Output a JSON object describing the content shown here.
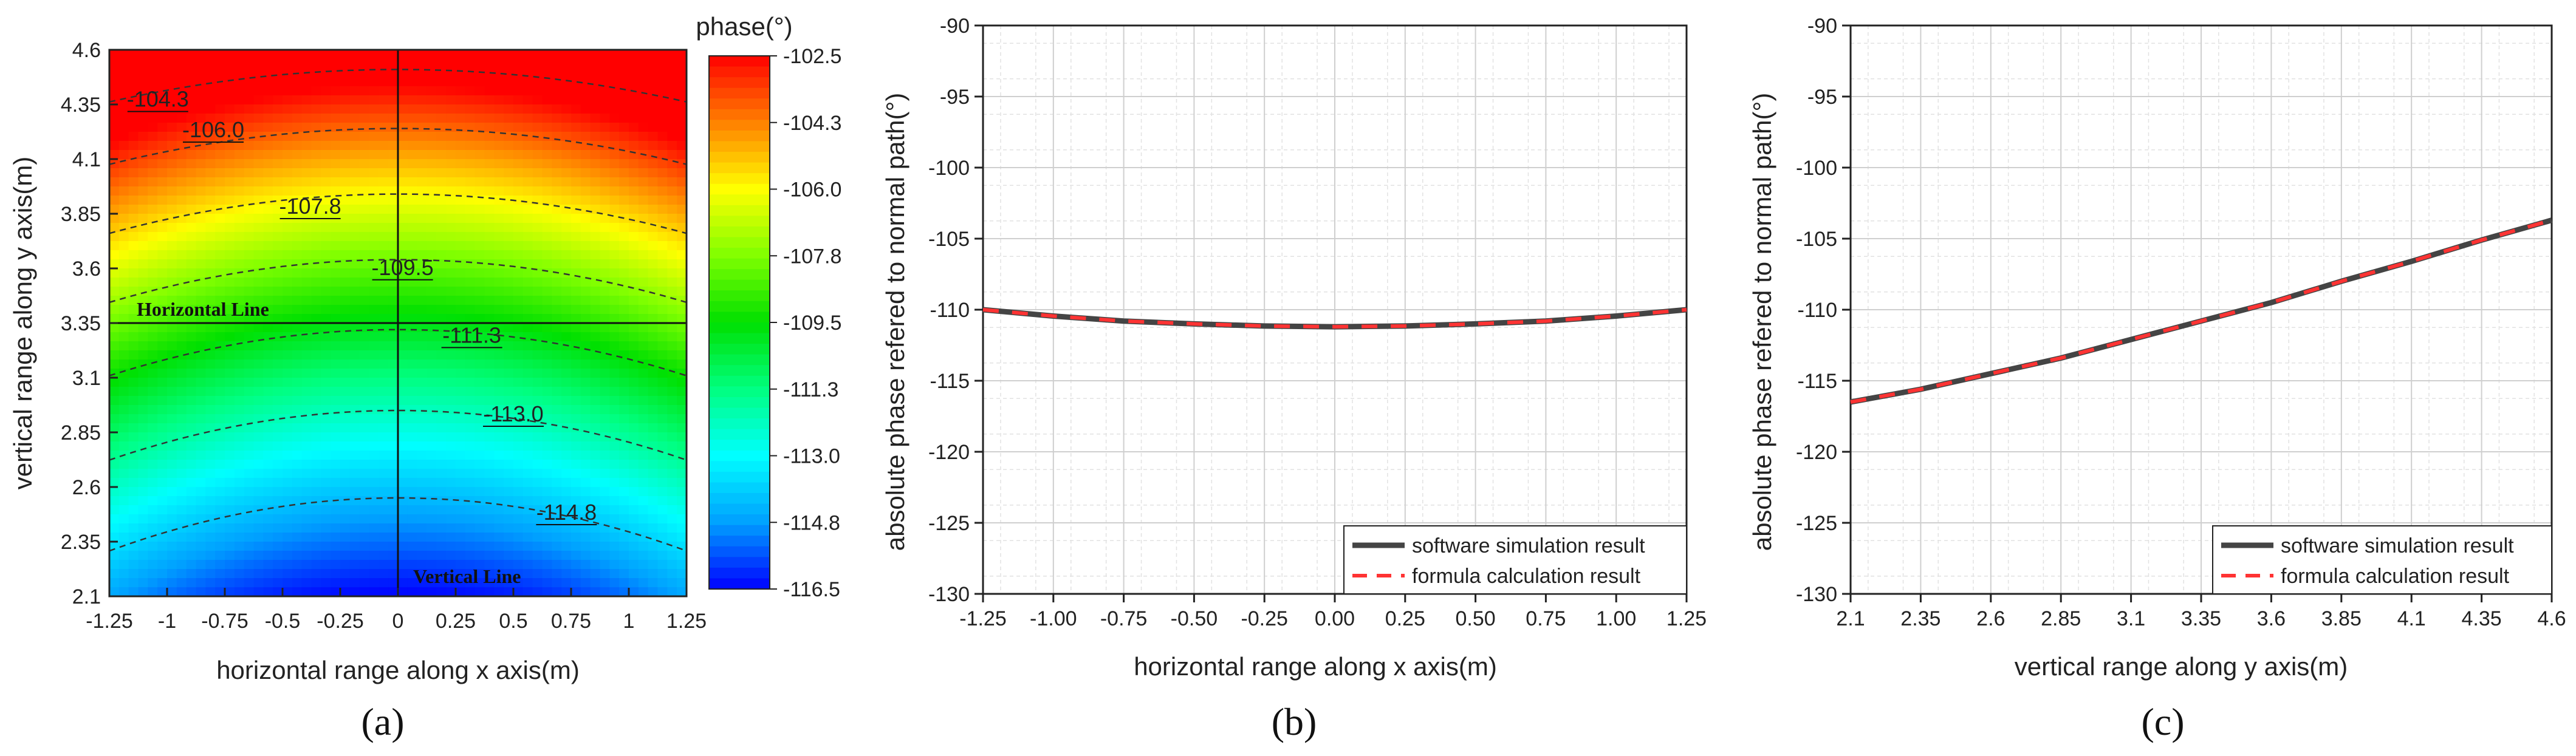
{
  "panels": {
    "a": {
      "caption": "(a)"
    },
    "b": {
      "caption": "(b)"
    },
    "c": {
      "caption": "(c)"
    }
  },
  "chart_data": [
    {
      "panel": "a",
      "type": "heatmap",
      "title": "",
      "xlabel": "horizontal range along x axis(m)",
      "ylabel": "vertical range along y axis(m)",
      "xlim": [
        -1.25,
        1.25
      ],
      "ylim": [
        2.1,
        4.6
      ],
      "xticks": [
        "-1.25",
        "-1",
        "-0.75",
        "-0.5",
        "-0.25",
        "0",
        "0.25",
        "0.5",
        "0.75",
        "1",
        "1.25"
      ],
      "yticks": [
        "2.1",
        "2.35",
        "2.6",
        "2.85",
        "3.1",
        "3.35",
        "3.6",
        "3.85",
        "4.1",
        "4.35",
        "4.6"
      ],
      "colorbar": {
        "label": "phase(°)",
        "ticks": [
          "-102.5",
          "-104.3",
          "-106.0",
          "-107.8",
          "-109.5",
          "-111.3",
          "-113.0",
          "-114.8",
          "-116.5"
        ],
        "range": [
          -116.5,
          -102.5
        ],
        "colors": [
          "#0000ff",
          "#00a0ff",
          "#00ffff",
          "#00ff80",
          "#00e000",
          "#80ff00",
          "#ffff00",
          "#ff8000",
          "#ff0000"
        ]
      },
      "contours": [
        {
          "label": "-104.3",
          "center_y": 4.51,
          "curvature": 0.095
        },
        {
          "label": "-106.0",
          "center_y": 4.24,
          "curvature": 0.105
        },
        {
          "label": "-107.8",
          "center_y": 3.94,
          "curvature": 0.115
        },
        {
          "label": "-109.5",
          "center_y": 3.64,
          "curvature": 0.125
        },
        {
          "label": "-111.3",
          "center_y": 3.32,
          "curvature": 0.135
        },
        {
          "label": "-113.0",
          "center_y": 2.95,
          "curvature": 0.145
        },
        {
          "label": "-114.8",
          "center_y": 2.55,
          "curvature": 0.155
        }
      ],
      "annotations": [
        {
          "text": "Horizontal Line",
          "x": -1.25,
          "y": 3.35
        },
        {
          "text": "Vertical Line",
          "x": 0.0,
          "y": 2.1
        }
      ]
    },
    {
      "panel": "b",
      "type": "line",
      "title": "",
      "xlabel": "horizontal range along x axis(m)",
      "ylabel": "absolute phase refered to normal path(°)",
      "xlim": [
        -1.25,
        1.25
      ],
      "ylim": [
        -130,
        -90
      ],
      "xticks": [
        "-1.25",
        "-1.00",
        "-0.75",
        "-0.50",
        "-0.25",
        "0.00",
        "0.25",
        "0.50",
        "0.75",
        "1.00",
        "1.25"
      ],
      "yticks": [
        "-90",
        "-95",
        "-100",
        "-105",
        "-110",
        "-115",
        "-120",
        "-125",
        "-130"
      ],
      "x": [
        -1.25,
        -1.0,
        -0.75,
        -0.5,
        -0.25,
        0.0,
        0.25,
        0.5,
        0.75,
        1.0,
        1.25
      ],
      "series": [
        {
          "name": "software simulation result",
          "color": "#444444",
          "dash": "solid",
          "values": [
            -110.0,
            -110.45,
            -110.8,
            -111.0,
            -111.15,
            -111.2,
            -111.15,
            -111.0,
            -110.8,
            -110.45,
            -110.0
          ]
        },
        {
          "name": "formula calculation result",
          "color": "#ff3333",
          "dash": "dashed",
          "values": [
            -110.0,
            -110.45,
            -110.8,
            -111.0,
            -111.15,
            -111.2,
            -111.15,
            -111.0,
            -110.8,
            -110.45,
            -110.0
          ]
        }
      ],
      "legend": "bottom-right",
      "grid": true
    },
    {
      "panel": "c",
      "type": "line",
      "title": "",
      "xlabel": "vertical range along y axis(m)",
      "ylabel": "absolute phase refered to normal path(°)",
      "xlim": [
        2.1,
        4.6
      ],
      "ylim": [
        -130,
        -90
      ],
      "xticks": [
        "2.1",
        "2.35",
        "2.6",
        "2.85",
        "3.1",
        "3.35",
        "3.6",
        "3.85",
        "4.1",
        "4.35",
        "4.6"
      ],
      "yticks": [
        "-90",
        "-95",
        "-100",
        "-105",
        "-110",
        "-115",
        "-120",
        "-125",
        "-130"
      ],
      "x": [
        2.1,
        2.35,
        2.6,
        2.85,
        3.1,
        3.35,
        3.6,
        3.85,
        4.1,
        4.35,
        4.6
      ],
      "series": [
        {
          "name": "software simulation result",
          "color": "#444444",
          "dash": "solid",
          "values": [
            -116.5,
            -115.6,
            -114.5,
            -113.4,
            -112.1,
            -110.8,
            -109.5,
            -108.0,
            -106.6,
            -105.1,
            -103.7
          ]
        },
        {
          "name": "formula calculation result",
          "color": "#ff3333",
          "dash": "dashed",
          "values": [
            -116.5,
            -115.6,
            -114.5,
            -113.4,
            -112.1,
            -110.8,
            -109.5,
            -108.0,
            -106.6,
            -105.1,
            -103.7
          ]
        }
      ],
      "legend": "bottom-right",
      "grid": true
    }
  ]
}
